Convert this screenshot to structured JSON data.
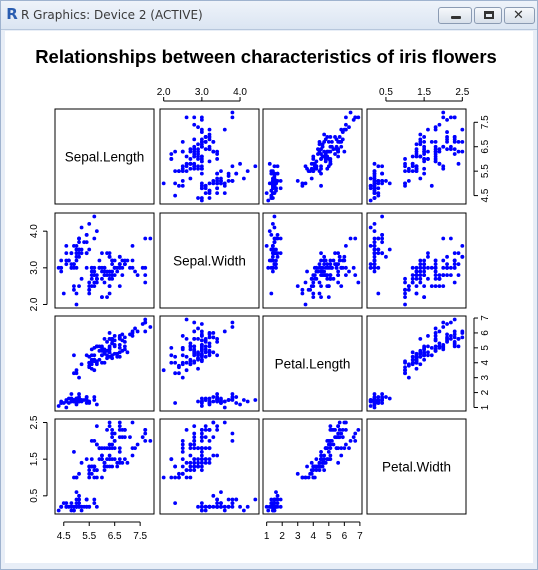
{
  "window": {
    "title": "R Graphics: Device 2 (ACTIVE)",
    "app_icon": "R",
    "buttons": {
      "minimize": "minimize-icon",
      "maximize": "maximize-icon",
      "close": "close-icon"
    },
    "close_glyph": "✕"
  },
  "colors": {
    "points": "#0000ff",
    "frame": "#000000",
    "background": "#ffffff"
  },
  "chart_data": {
    "type": "scatter",
    "subtype": "scatterplot-matrix",
    "title": "Relationships between characteristics of iris flowers",
    "variables": [
      "Sepal.Length",
      "Sepal.Width",
      "Petal.Length",
      "Petal.Width"
    ],
    "point_color": "#0000ff",
    "point_shape": "filled circle",
    "ranges": {
      "Sepal.Length": [
        4.3,
        7.9
      ],
      "Sepal.Width": [
        2.0,
        4.4
      ],
      "Petal.Length": [
        1.0,
        6.9
      ],
      "Petal.Width": [
        0.1,
        2.5
      ]
    },
    "axis_ticks": {
      "Sepal.Length": [
        "4.5",
        "5.5",
        "6.5",
        "7.5"
      ],
      "Sepal.Width": [
        "2.0",
        "3.0",
        "4.0"
      ],
      "Petal.Length": [
        "1",
        "2",
        "3",
        "4",
        "5",
        "6",
        "7"
      ],
      "Petal.Width": [
        "0.5",
        "1.5",
        "2.5"
      ]
    },
    "axis_tick_values": {
      "Sepal.Length": [
        4.5,
        5.5,
        6.5,
        7.5
      ],
      "Sepal.Width": [
        2.0,
        3.0,
        4.0
      ],
      "Petal.Length": [
        1,
        2,
        3,
        4,
        5,
        6,
        7
      ],
      "Petal.Width": [
        0.5,
        1.5,
        2.5
      ]
    },
    "axis_placement": {
      "top": [
        "Sepal.Width",
        "Petal.Width"
      ],
      "bottom": [
        "Sepal.Length",
        "Petal.Length"
      ],
      "left": [
        "Sepal.Width",
        "Petal.Width"
      ],
      "right": [
        "Sepal.Length",
        "Petal.Length"
      ]
    },
    "grid": false,
    "legend": "none",
    "series_columns": [
      "Sepal.Length",
      "Sepal.Width",
      "Petal.Length",
      "Petal.Width"
    ],
    "observations": [
      [
        5.1,
        3.5,
        1.4,
        0.2
      ],
      [
        4.9,
        3.0,
        1.4,
        0.2
      ],
      [
        4.7,
        3.2,
        1.3,
        0.2
      ],
      [
        4.6,
        3.1,
        1.5,
        0.2
      ],
      [
        5.0,
        3.6,
        1.4,
        0.2
      ],
      [
        5.4,
        3.9,
        1.7,
        0.4
      ],
      [
        4.6,
        3.4,
        1.4,
        0.3
      ],
      [
        5.0,
        3.4,
        1.5,
        0.2
      ],
      [
        4.4,
        2.9,
        1.4,
        0.2
      ],
      [
        4.9,
        3.1,
        1.5,
        0.1
      ],
      [
        5.4,
        3.7,
        1.5,
        0.2
      ],
      [
        4.8,
        3.4,
        1.6,
        0.2
      ],
      [
        4.8,
        3.0,
        1.4,
        0.1
      ],
      [
        4.3,
        3.0,
        1.1,
        0.1
      ],
      [
        5.8,
        4.0,
        1.2,
        0.2
      ],
      [
        5.7,
        4.4,
        1.5,
        0.4
      ],
      [
        5.4,
        3.9,
        1.3,
        0.4
      ],
      [
        5.1,
        3.5,
        1.4,
        0.3
      ],
      [
        5.7,
        3.8,
        1.7,
        0.3
      ],
      [
        5.1,
        3.8,
        1.5,
        0.3
      ],
      [
        5.4,
        3.4,
        1.7,
        0.2
      ],
      [
        5.1,
        3.7,
        1.5,
        0.4
      ],
      [
        4.6,
        3.6,
        1.0,
        0.2
      ],
      [
        5.1,
        3.3,
        1.7,
        0.5
      ],
      [
        4.8,
        3.4,
        1.9,
        0.2
      ],
      [
        5.0,
        3.0,
        1.6,
        0.2
      ],
      [
        5.0,
        3.4,
        1.6,
        0.4
      ],
      [
        5.2,
        3.5,
        1.5,
        0.2
      ],
      [
        5.2,
        3.4,
        1.4,
        0.2
      ],
      [
        4.7,
        3.2,
        1.6,
        0.2
      ],
      [
        4.8,
        3.1,
        1.6,
        0.2
      ],
      [
        5.4,
        3.4,
        1.5,
        0.4
      ],
      [
        5.2,
        4.1,
        1.5,
        0.1
      ],
      [
        5.5,
        4.2,
        1.4,
        0.2
      ],
      [
        4.9,
        3.1,
        1.5,
        0.2
      ],
      [
        5.0,
        3.2,
        1.2,
        0.2
      ],
      [
        5.5,
        3.5,
        1.3,
        0.2
      ],
      [
        4.9,
        3.6,
        1.4,
        0.1
      ],
      [
        4.4,
        3.0,
        1.3,
        0.2
      ],
      [
        5.1,
        3.4,
        1.5,
        0.2
      ],
      [
        5.0,
        3.5,
        1.3,
        0.3
      ],
      [
        4.5,
        2.3,
        1.3,
        0.3
      ],
      [
        4.4,
        3.2,
        1.3,
        0.2
      ],
      [
        5.0,
        3.5,
        1.6,
        0.6
      ],
      [
        5.1,
        3.8,
        1.9,
        0.4
      ],
      [
        4.8,
        3.0,
        1.4,
        0.3
      ],
      [
        5.1,
        3.8,
        1.6,
        0.2
      ],
      [
        4.6,
        3.2,
        1.4,
        0.2
      ],
      [
        5.3,
        3.7,
        1.5,
        0.2
      ],
      [
        5.0,
        3.3,
        1.4,
        0.2
      ],
      [
        7.0,
        3.2,
        4.7,
        1.4
      ],
      [
        6.4,
        3.2,
        4.5,
        1.5
      ],
      [
        6.9,
        3.1,
        4.9,
        1.5
      ],
      [
        5.5,
        2.3,
        4.0,
        1.3
      ],
      [
        6.5,
        2.8,
        4.6,
        1.5
      ],
      [
        5.7,
        2.8,
        4.5,
        1.3
      ],
      [
        6.3,
        3.3,
        4.7,
        1.6
      ],
      [
        4.9,
        2.4,
        3.3,
        1.0
      ],
      [
        6.6,
        2.9,
        4.6,
        1.3
      ],
      [
        5.2,
        2.7,
        3.9,
        1.4
      ],
      [
        5.0,
        2.0,
        3.5,
        1.0
      ],
      [
        5.9,
        3.0,
        4.2,
        1.5
      ],
      [
        6.0,
        2.2,
        4.0,
        1.0
      ],
      [
        6.1,
        2.9,
        4.7,
        1.4
      ],
      [
        5.6,
        2.9,
        3.6,
        1.3
      ],
      [
        6.7,
        3.1,
        4.4,
        1.4
      ],
      [
        5.6,
        3.0,
        4.5,
        1.5
      ],
      [
        5.8,
        2.7,
        4.1,
        1.0
      ],
      [
        6.2,
        2.2,
        4.5,
        1.5
      ],
      [
        5.6,
        2.5,
        3.9,
        1.1
      ],
      [
        5.9,
        3.2,
        4.8,
        1.8
      ],
      [
        6.1,
        2.8,
        4.0,
        1.3
      ],
      [
        6.3,
        2.5,
        4.9,
        1.5
      ],
      [
        6.1,
        2.8,
        4.7,
        1.2
      ],
      [
        6.4,
        2.9,
        4.3,
        1.3
      ],
      [
        6.6,
        3.0,
        4.4,
        1.4
      ],
      [
        6.8,
        2.8,
        4.8,
        1.4
      ],
      [
        6.7,
        3.0,
        5.0,
        1.7
      ],
      [
        6.0,
        2.9,
        4.5,
        1.5
      ],
      [
        5.7,
        2.6,
        3.5,
        1.0
      ],
      [
        5.5,
        2.4,
        3.8,
        1.1
      ],
      [
        5.5,
        2.4,
        3.7,
        1.0
      ],
      [
        5.8,
        2.7,
        3.9,
        1.2
      ],
      [
        6.0,
        2.7,
        5.1,
        1.6
      ],
      [
        5.4,
        3.0,
        4.5,
        1.5
      ],
      [
        6.0,
        3.4,
        4.5,
        1.6
      ],
      [
        6.7,
        3.1,
        4.7,
        1.5
      ],
      [
        6.3,
        2.3,
        4.4,
        1.3
      ],
      [
        5.6,
        3.0,
        4.1,
        1.3
      ],
      [
        5.5,
        2.5,
        4.0,
        1.3
      ],
      [
        5.5,
        2.6,
        4.4,
        1.2
      ],
      [
        6.1,
        3.0,
        4.6,
        1.4
      ],
      [
        5.8,
        2.6,
        4.0,
        1.2
      ],
      [
        5.0,
        2.3,
        3.3,
        1.0
      ],
      [
        5.6,
        2.7,
        4.2,
        1.3
      ],
      [
        5.7,
        3.0,
        4.2,
        1.2
      ],
      [
        5.7,
        2.9,
        4.2,
        1.3
      ],
      [
        6.2,
        2.9,
        4.3,
        1.3
      ],
      [
        5.1,
        2.5,
        3.0,
        1.1
      ],
      [
        5.7,
        2.8,
        4.1,
        1.3
      ],
      [
        6.3,
        3.3,
        6.0,
        2.5
      ],
      [
        5.8,
        2.7,
        5.1,
        1.9
      ],
      [
        7.1,
        3.0,
        5.9,
        2.1
      ],
      [
        6.3,
        2.9,
        5.6,
        1.8
      ],
      [
        6.5,
        3.0,
        5.8,
        2.2
      ],
      [
        7.6,
        3.0,
        6.6,
        2.1
      ],
      [
        4.9,
        2.5,
        4.5,
        1.7
      ],
      [
        7.3,
        2.9,
        6.3,
        1.8
      ],
      [
        6.7,
        2.5,
        5.8,
        1.8
      ],
      [
        7.2,
        3.6,
        6.1,
        2.5
      ],
      [
        6.5,
        3.2,
        5.1,
        2.0
      ],
      [
        6.4,
        2.7,
        5.3,
        1.9
      ],
      [
        6.8,
        3.0,
        5.5,
        2.1
      ],
      [
        5.7,
        2.5,
        5.0,
        2.0
      ],
      [
        5.8,
        2.8,
        5.1,
        2.4
      ],
      [
        6.4,
        3.2,
        5.3,
        2.3
      ],
      [
        6.5,
        3.0,
        5.5,
        1.8
      ],
      [
        7.7,
        3.8,
        6.7,
        2.2
      ],
      [
        7.7,
        2.6,
        6.9,
        2.3
      ],
      [
        6.0,
        2.2,
        5.0,
        1.5
      ],
      [
        6.9,
        3.2,
        5.7,
        2.3
      ],
      [
        5.6,
        2.8,
        4.9,
        2.0
      ],
      [
        7.7,
        2.8,
        6.7,
        2.0
      ],
      [
        6.3,
        2.7,
        4.9,
        1.8
      ],
      [
        6.7,
        3.3,
        5.7,
        2.1
      ],
      [
        7.2,
        3.2,
        6.0,
        1.8
      ],
      [
        6.2,
        2.8,
        4.8,
        1.8
      ],
      [
        6.1,
        3.0,
        4.9,
        1.8
      ],
      [
        6.4,
        2.8,
        5.6,
        2.1
      ],
      [
        7.2,
        3.0,
        5.8,
        1.6
      ],
      [
        7.4,
        2.8,
        6.1,
        1.9
      ],
      [
        7.9,
        3.8,
        6.4,
        2.0
      ],
      [
        6.4,
        2.8,
        5.6,
        2.2
      ],
      [
        6.3,
        2.8,
        5.1,
        1.5
      ],
      [
        6.1,
        2.6,
        5.6,
        1.4
      ],
      [
        7.7,
        3.0,
        6.1,
        2.3
      ],
      [
        6.3,
        3.4,
        5.6,
        2.4
      ],
      [
        6.4,
        3.1,
        5.5,
        1.8
      ],
      [
        6.0,
        3.0,
        4.8,
        1.8
      ],
      [
        6.9,
        3.1,
        5.4,
        2.1
      ],
      [
        6.7,
        3.1,
        5.6,
        2.4
      ],
      [
        6.9,
        3.1,
        5.1,
        2.3
      ],
      [
        5.8,
        2.7,
        5.1,
        1.9
      ],
      [
        6.8,
        3.2,
        5.9,
        2.3
      ],
      [
        6.7,
        3.3,
        5.7,
        2.5
      ],
      [
        6.7,
        3.0,
        5.2,
        2.3
      ],
      [
        6.3,
        2.5,
        5.0,
        1.9
      ],
      [
        6.5,
        3.0,
        5.2,
        2.0
      ],
      [
        6.2,
        3.4,
        5.4,
        2.3
      ],
      [
        5.9,
        3.0,
        5.1,
        1.8
      ]
    ]
  }
}
